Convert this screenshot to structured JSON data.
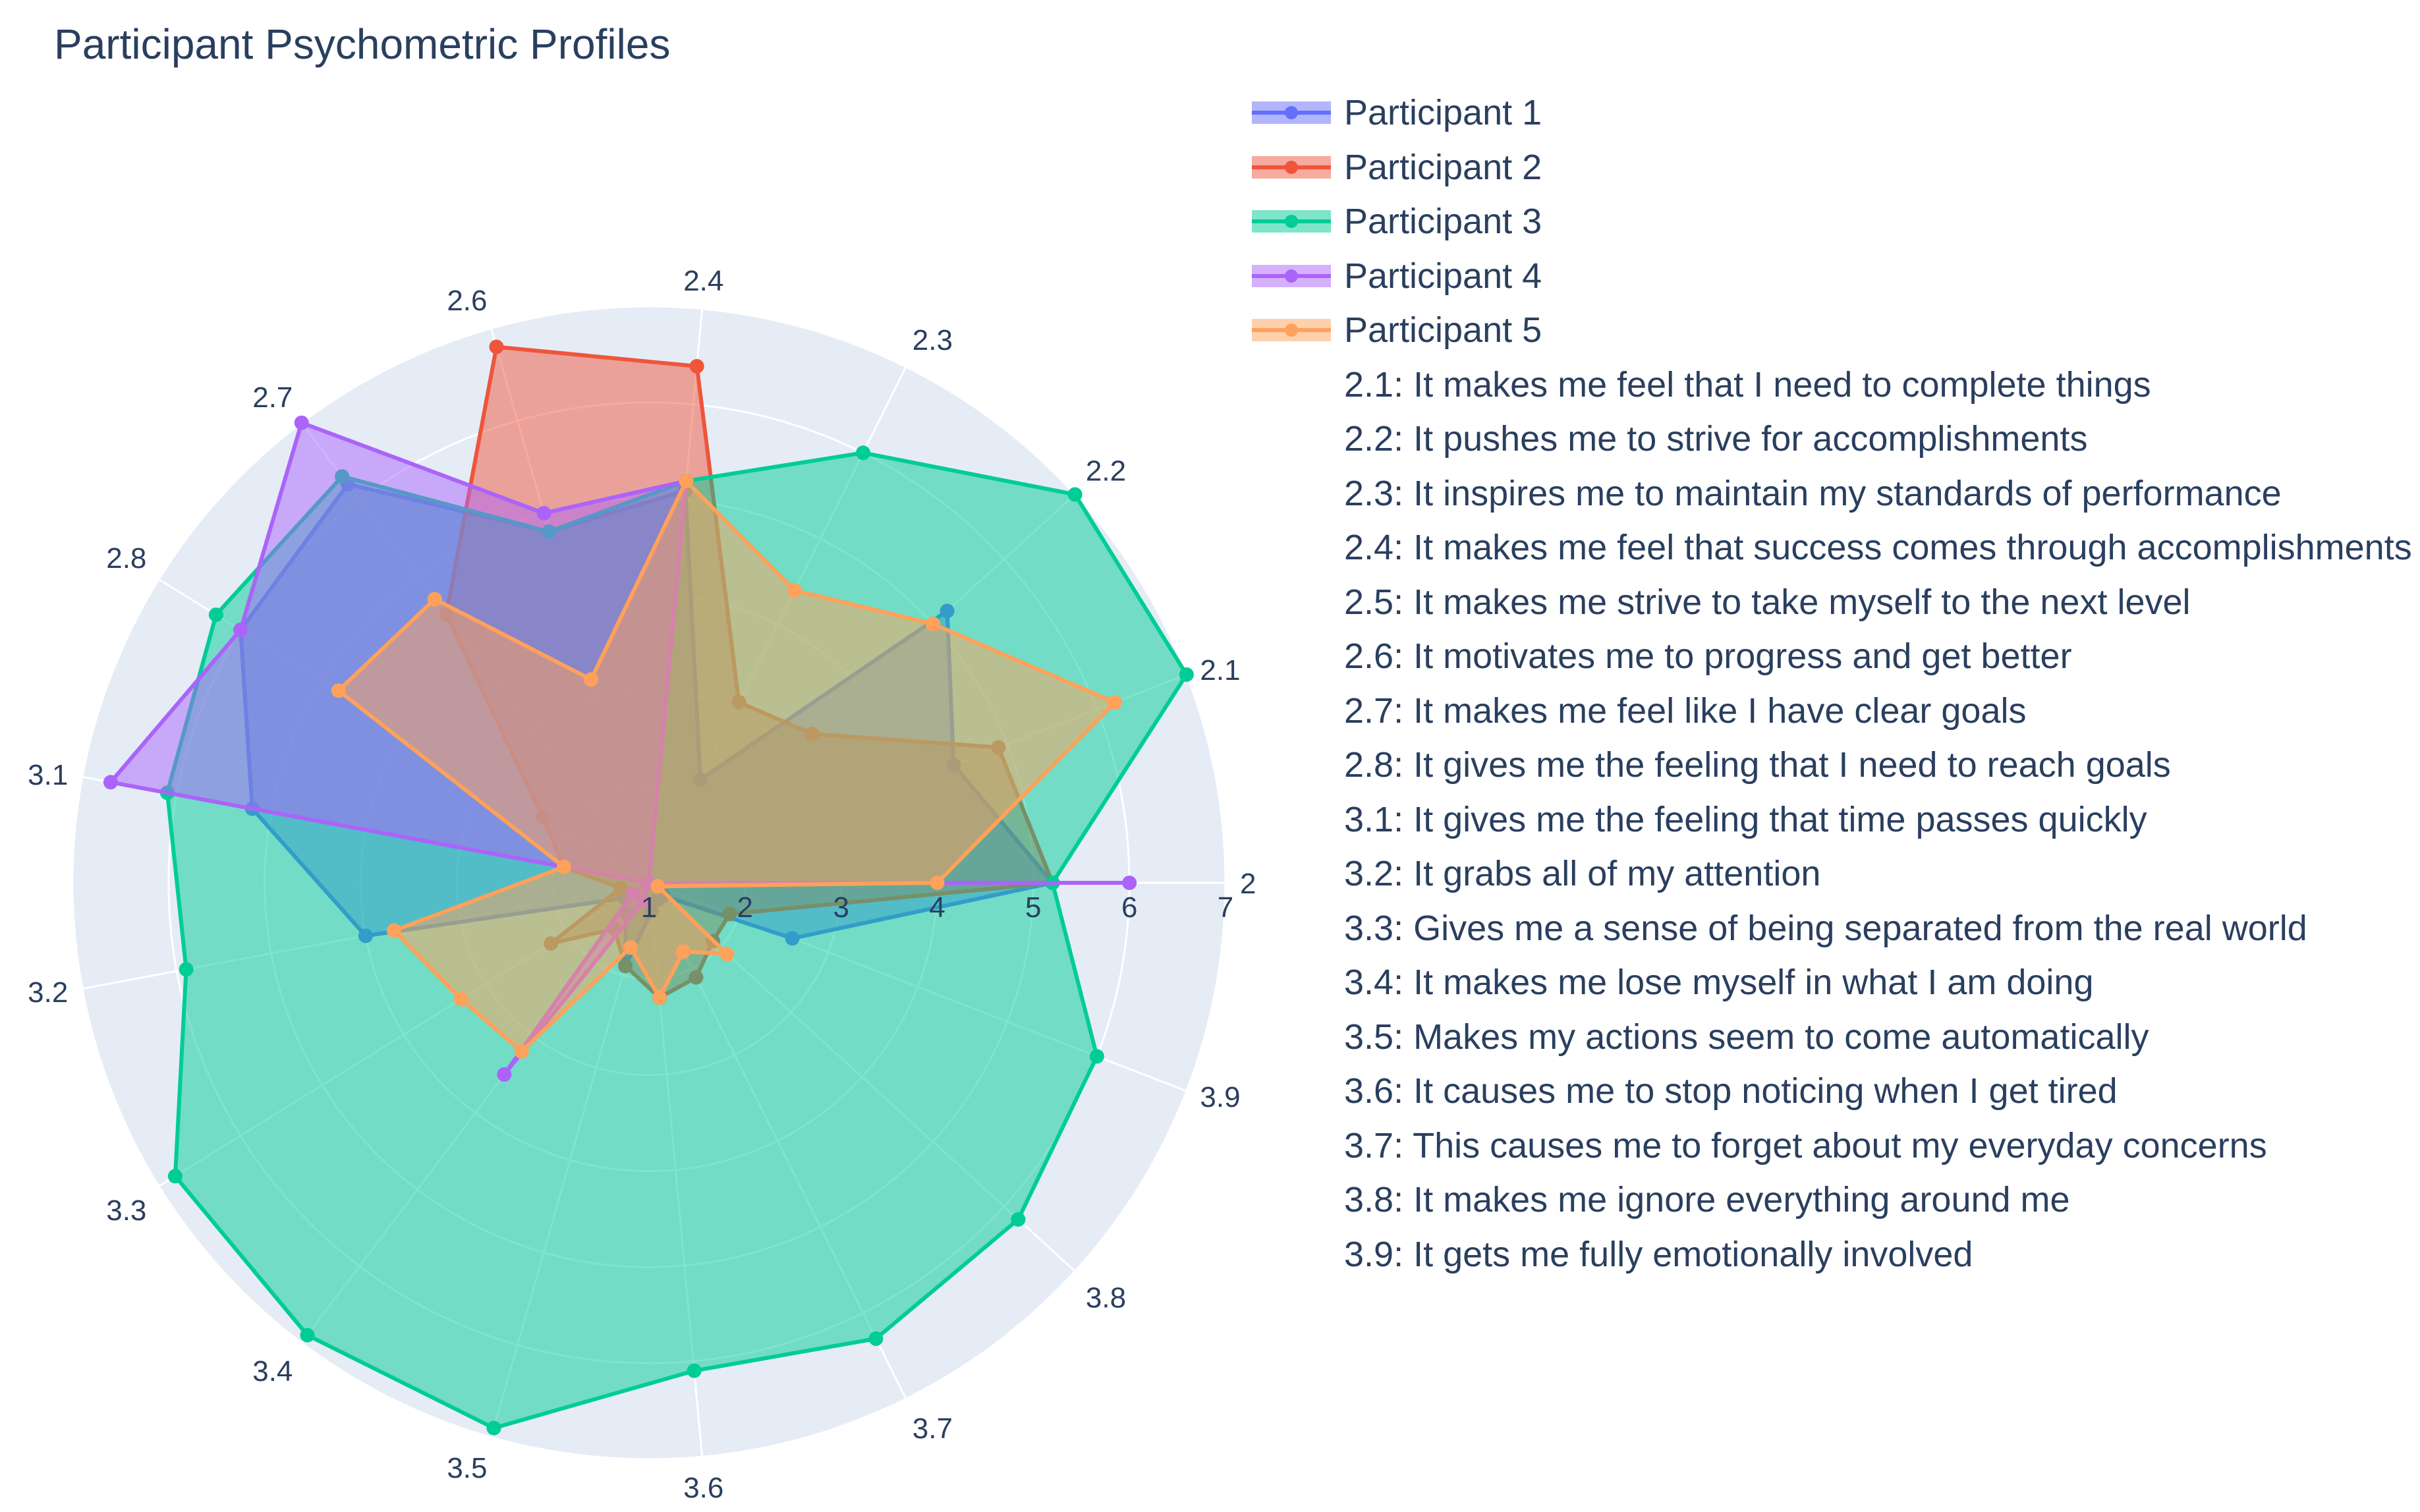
{
  "chart_data": {
    "type": "radar",
    "title": "Participant Psychometric Profiles",
    "radial_range": [
      1,
      7
    ],
    "radial_ticks": [
      1,
      2,
      3,
      4,
      5,
      6,
      7
    ],
    "angular_categories": [
      "2",
      "2.1",
      "2.2",
      "2.3",
      "2.4",
      "2.6",
      "2.7",
      "2.8",
      "3.1",
      "3.2",
      "3.3",
      "3.4",
      "3.5",
      "3.6",
      "3.7",
      "3.8",
      "3.9"
    ],
    "direction": "counterclockwise",
    "series": [
      {
        "name": "Participant 1",
        "color": "#636efa",
        "values": [
          5.2,
          4.4,
          5.2,
          2.2,
          5.1,
          4.8,
          6.2,
          6.0,
          5.2,
          4.0,
          1.3,
          1.4,
          1.9,
          1.3,
          1.2,
          1.2,
          2.6
        ]
      },
      {
        "name": "Participant 2",
        "color": "#ef553b",
        "values": [
          5.2,
          4.9,
          3.3,
          3.1,
          6.4,
          6.8,
          4.5,
          2.3,
          1.9,
          1.3,
          2.2,
          1.6,
          1.9,
          2.2,
          2.1,
          1.9,
          1.9
        ]
      },
      {
        "name": "Participant 3",
        "color": "#00cc96",
        "values": [
          5.2,
          7.0,
          7.0,
          6.0,
          5.2,
          4.8,
          6.3,
          6.3,
          6.1,
          5.9,
          6.8,
          6.9,
          6.9,
          6.1,
          6.3,
          6.2,
          6.0
        ]
      },
      {
        "name": "Participant 4",
        "color": "#ab63fa",
        "values": [
          6.0,
          1.0,
          1.0,
          1.0,
          5.2,
          5.0,
          7.0,
          6.0,
          6.7,
          1.0,
          1.2,
          3.5,
          1.2,
          1.0,
          1.0,
          1.0,
          1.0
        ]
      },
      {
        "name": "Participant 5",
        "color": "#ffa15a",
        "values": [
          4.0,
          6.2,
          5.0,
          4.4,
          5.2,
          3.2,
          4.7,
          4.8,
          1.9,
          3.7,
          3.3,
          3.2,
          1.7,
          2.2,
          1.8,
          2.1,
          1.1
        ]
      }
    ],
    "legend_notes": [
      "2.1: It makes me feel that I need to complete things",
      "2.2: It pushes me to strive for accomplishments",
      "2.3: It inspires me to maintain my standards of performance",
      "2.4: It makes me feel that success comes through accomplishments",
      "2.5: It makes me strive to take myself to the next level",
      "2.6: It motivates me to progress and get better",
      "2.7: It makes me feel like I have clear goals",
      "2.8: It gives me the feeling that I need to reach goals",
      "3.1: It gives me the feeling that time passes quickly",
      "3.2: It grabs all of my attention",
      "3.3: Gives me a sense of being separated from the real world",
      "3.4: It makes me lose myself in what I am doing",
      "3.5: Makes my actions seem to come automatically",
      "3.6: It causes me to stop noticing when I get tired",
      "3.7: This causes me to forget about my everyday concerns",
      "3.8: It makes me ignore everything around me",
      "3.9: It gets me fully emotionally involved"
    ],
    "legend_placement": "right",
    "grid": true
  }
}
